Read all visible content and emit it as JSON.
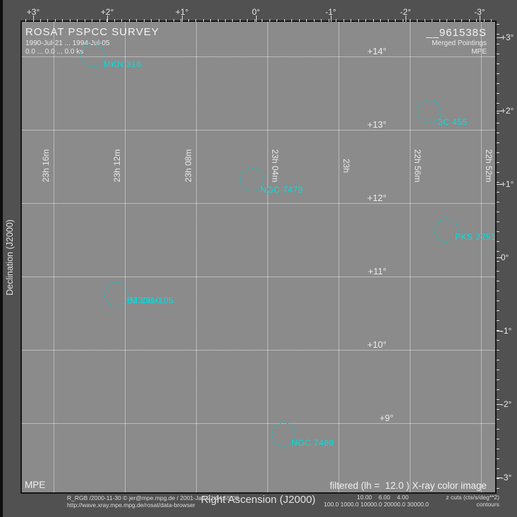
{
  "header": {
    "title": "ROSAT PSPCC SURVEY",
    "date_range": "1990-Jul-21 ... 1994-Jul-05",
    "exposure_range": "0.0 ... 0.0 ... 0.0 ks",
    "sequence_id": "__961538S",
    "pointing_note": "Merged Pointings",
    "institute": "MPE"
  },
  "plot_corner": {
    "bottom_left": "MPE",
    "bottom_right": "filtered (lh =  12.0 ) X-ray color image"
  },
  "axes": {
    "x_title": "Right Ascension (J2000)",
    "y_title": "Declination (J2000)",
    "top_labels": [
      "+3°",
      "+2°",
      "+1°",
      "0°",
      "-1°",
      "-2°",
      "-3°"
    ],
    "right_labels": [
      "+3°",
      "+2°",
      "+1°",
      "0°",
      "-1°",
      "-2°",
      "-3°"
    ],
    "ra_labels": [
      "23h 16m",
      "23h 12m",
      "23h 08m",
      "23h 04m",
      "23h",
      "22h 56m",
      "22h 52m"
    ],
    "dec_labels": [
      "+14°",
      "+13°",
      "+12°",
      "+11°",
      "+10°",
      "+9°"
    ]
  },
  "sources": [
    {
      "label": "MKN 316"
    },
    {
      "label": "3C 455"
    },
    {
      "label": "NGC 7479"
    },
    {
      "label": "PKS 2251"
    },
    {
      "label": "B2308+105",
      "overlay_label": "M 2310"
    },
    {
      "label": "NGC 7469"
    }
  ],
  "footer": {
    "credit": "R_RGB /2000-11-30 © jer@mpe.mpg.de / 2001-Jan-22/14:55:08",
    "url": "http://wave.xray.mpe.mpg.de/rosat/data-browser",
    "contour_levels": "10.00    6.00    4.00",
    "z_values": "100.0 1000.0 10000.0 20000.0 30000.0",
    "z_cuts_label": "z cuts (cts/s/deg**2)",
    "contours_label": "contours"
  },
  "colors": {
    "accent_cyan": "#00dede",
    "plot_background": "#8b8b8b",
    "margin_background": "#515151",
    "grid_white": "#ffffff"
  },
  "chart_data": {
    "type": "scatter",
    "title": "ROSAT PSPCC SURVEY",
    "xlabel": "Right Ascension (J2000)",
    "ylabel": "Declination (J2000)",
    "x_ticks": [
      "23h 16m",
      "23h 12m",
      "23h 08m",
      "23h 04m",
      "23h",
      "22h 56m",
      "22h 52m"
    ],
    "y_ticks": [
      "+14°",
      "+13°",
      "+12°",
      "+11°",
      "+10°",
      "+9°"
    ],
    "offset_axis_ticks": [
      "+3°",
      "+2°",
      "+1°",
      "0°",
      "-1°",
      "-2°",
      "-3°"
    ],
    "grid": true,
    "points": [
      {
        "name": "MKN 316",
        "ra": "23h 13.8m",
        "dec_deg": 14.0
      },
      {
        "name": "3C 455",
        "ra": "22h 54.9m",
        "dec_deg": 13.25
      },
      {
        "name": "NGC 7479",
        "ra": "23h 04.9m",
        "dec_deg": 12.3
      },
      {
        "name": "PKS 2251",
        "ra": "22h 53.9m",
        "dec_deg": 11.6
      },
      {
        "name": "B2308+105 / M 2310",
        "ra": "23h 12.5m",
        "dec_deg": 10.85
      },
      {
        "name": "NGC 7469",
        "ra": "23h 03.1m",
        "dec_deg": 8.85
      }
    ]
  }
}
